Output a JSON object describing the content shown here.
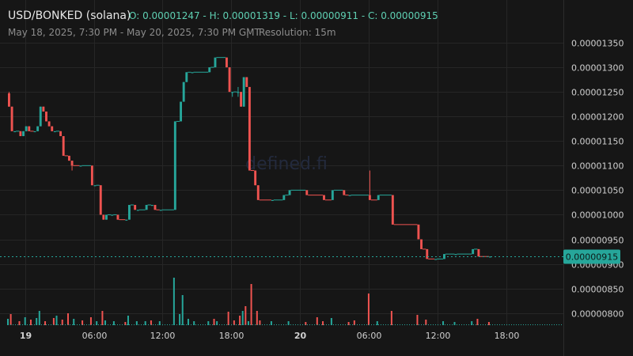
{
  "header": {
    "pair": "USD/BONKED (solana)",
    "ohlc": "O: 0.00001247 - H: 0.00001319 - L: 0.00000911 - C: 0.00000915",
    "range": "May 18, 2025, 7:30 PM - May 20, 2025, 7:30 PM GMT",
    "separator": "|",
    "resolution": "Resolution: 15m"
  },
  "watermark": "defined.fi",
  "colors": {
    "up": "#26a69a",
    "down": "#ef5350",
    "last_price": "#26a69a",
    "grid": "#262626",
    "background": "#161616"
  },
  "chart_data": {
    "type": "candlestick",
    "x_ticks": [
      {
        "label": "19",
        "hour": 4.5,
        "bold": true
      },
      {
        "label": "06:00",
        "hour": 10.5,
        "bold": false
      },
      {
        "label": "12:00",
        "hour": 16.5,
        "bold": false
      },
      {
        "label": "18:00",
        "hour": 22.5,
        "bold": false
      },
      {
        "label": "20",
        "hour": 28.5,
        "bold": true
      },
      {
        "label": "06:00",
        "hour": 34.5,
        "bold": false
      },
      {
        "label": "12:00",
        "hour": 40.5,
        "bold": false
      },
      {
        "label": "18:00",
        "hour": 46.5,
        "bold": false
      }
    ],
    "y_ticks": [
      "0.00001350",
      "0.00001300",
      "0.00001250",
      "0.00001200",
      "0.00001150",
      "0.00001100",
      "0.00001050",
      "0.00001000",
      "0.00000950",
      "0.00000900",
      "0.00000850",
      "0.00000800"
    ],
    "y_tick_values": [
      1.35e-05,
      1.3e-05,
      1.25e-05,
      1.2e-05,
      1.15e-05,
      1.1e-05,
      1.05e-05,
      1e-05,
      9.5e-06,
      9e-06,
      8.5e-06,
      8e-06
    ],
    "ylim": [
      7.85e-06,
      1.375e-05
    ],
    "x_range_hours": [
      3.0,
      51.5
    ],
    "last_price": "0.00000915",
    "last_price_value": 9.15e-06,
    "candles": [
      {
        "h": 3.0,
        "o": 1.247e-05,
        "hi": 1.25e-05,
        "lo": 1.22e-05,
        "c": 1.22e-05
      },
      {
        "h": 3.25,
        "o": 1.22e-05,
        "hi": 1.22e-05,
        "lo": 1.17e-05,
        "c": 1.17e-05
      },
      {
        "h": 3.5,
        "o": 1.17e-05,
        "hi": 1.17e-05,
        "lo": 1.17e-05,
        "c": 1.17e-05
      },
      {
        "h": 4.0,
        "o": 1.17e-05,
        "hi": 1.17e-05,
        "lo": 1.16e-05,
        "c": 1.16e-05
      },
      {
        "h": 4.25,
        "o": 1.16e-05,
        "hi": 1.17e-05,
        "lo": 1.16e-05,
        "c": 1.17e-05
      },
      {
        "h": 4.5,
        "o": 1.17e-05,
        "hi": 1.18e-05,
        "lo": 1.17e-05,
        "c": 1.18e-05
      },
      {
        "h": 4.75,
        "o": 1.18e-05,
        "hi": 1.18e-05,
        "lo": 1.17e-05,
        "c": 1.17e-05
      },
      {
        "h": 5.25,
        "o": 1.17e-05,
        "hi": 1.17e-05,
        "lo": 1.17e-05,
        "c": 1.17e-05
      },
      {
        "h": 5.5,
        "o": 1.17e-05,
        "hi": 1.18e-05,
        "lo": 1.17e-05,
        "c": 1.18e-05
      },
      {
        "h": 5.75,
        "o": 1.18e-05,
        "hi": 1.22e-05,
        "lo": 1.18e-05,
        "c": 1.22e-05
      },
      {
        "h": 6.0,
        "o": 1.22e-05,
        "hi": 1.22e-05,
        "lo": 1.21e-05,
        "c": 1.21e-05
      },
      {
        "h": 6.25,
        "o": 1.21e-05,
        "hi": 1.21e-05,
        "lo": 1.19e-05,
        "c": 1.19e-05
      },
      {
        "h": 6.5,
        "o": 1.19e-05,
        "hi": 1.19e-05,
        "lo": 1.18e-05,
        "c": 1.18e-05
      },
      {
        "h": 6.75,
        "o": 1.18e-05,
        "hi": 1.18e-05,
        "lo": 1.17e-05,
        "c": 1.17e-05
      },
      {
        "h": 7.0,
        "o": 1.17e-05,
        "hi": 1.17e-05,
        "lo": 1.17e-05,
        "c": 1.17e-05
      },
      {
        "h": 7.5,
        "o": 1.17e-05,
        "hi": 1.17e-05,
        "lo": 1.16e-05,
        "c": 1.16e-05
      },
      {
        "h": 7.75,
        "o": 1.16e-05,
        "hi": 1.16e-05,
        "lo": 1.12e-05,
        "c": 1.12e-05
      },
      {
        "h": 8.25,
        "o": 1.12e-05,
        "hi": 1.12e-05,
        "lo": 1.11e-05,
        "c": 1.11e-05
      },
      {
        "h": 8.5,
        "o": 1.11e-05,
        "hi": 1.11e-05,
        "lo": 1.09e-05,
        "c": 1.1e-05
      },
      {
        "h": 9.25,
        "o": 1.1e-05,
        "hi": 1.1e-05,
        "lo": 1.1e-05,
        "c": 1.1e-05
      },
      {
        "h": 10.25,
        "o": 1.1e-05,
        "hi": 1.1e-05,
        "lo": 1.06e-05,
        "c": 1.06e-05
      },
      {
        "h": 10.5,
        "o": 1.06e-05,
        "hi": 1.06e-05,
        "lo": 1.06e-05,
        "c": 1.06e-05
      },
      {
        "h": 11.0,
        "o": 1.06e-05,
        "hi": 1.06e-05,
        "lo": 1e-05,
        "c": 1e-05
      },
      {
        "h": 11.25,
        "o": 1e-05,
        "hi": 1e-05,
        "lo": 9.9e-06,
        "c": 9.9e-06
      },
      {
        "h": 11.5,
        "o": 9.9e-06,
        "hi": 1e-05,
        "lo": 9.9e-06,
        "c": 1e-05
      },
      {
        "h": 12.0,
        "o": 1e-05,
        "hi": 1e-05,
        "lo": 1e-05,
        "c": 1e-05
      },
      {
        "h": 12.5,
        "o": 1e-05,
        "hi": 1e-05,
        "lo": 9.9e-06,
        "c": 9.9e-06
      },
      {
        "h": 13.25,
        "o": 9.9e-06,
        "hi": 9.9e-06,
        "lo": 9.9e-06,
        "c": 9.9e-06
      },
      {
        "h": 13.5,
        "o": 9.9e-06,
        "hi": 1.02e-05,
        "lo": 9.9e-06,
        "c": 1.02e-05
      },
      {
        "h": 14.0,
        "o": 1.02e-05,
        "hi": 1.02e-05,
        "lo": 1.01e-05,
        "c": 1.01e-05
      },
      {
        "h": 14.25,
        "o": 1.01e-05,
        "hi": 1.01e-05,
        "lo": 1.01e-05,
        "c": 1.01e-05
      },
      {
        "h": 15.0,
        "o": 1.01e-05,
        "hi": 1.02e-05,
        "lo": 1.01e-05,
        "c": 1.02e-05
      },
      {
        "h": 15.5,
        "o": 1.02e-05,
        "hi": 1.02e-05,
        "lo": 1.02e-05,
        "c": 1.02e-05
      },
      {
        "h": 15.75,
        "o": 1.02e-05,
        "hi": 1.02e-05,
        "lo": 1.01e-05,
        "c": 1.01e-05
      },
      {
        "h": 16.25,
        "o": 1.01e-05,
        "hi": 1.01e-05,
        "lo": 1.01e-05,
        "c": 1.01e-05
      },
      {
        "h": 17.5,
        "o": 1.01e-05,
        "hi": 1.19e-05,
        "lo": 1.01e-05,
        "c": 1.19e-05
      },
      {
        "h": 18.0,
        "o": 1.19e-05,
        "hi": 1.23e-05,
        "lo": 1.19e-05,
        "c": 1.23e-05
      },
      {
        "h": 18.25,
        "o": 1.23e-05,
        "hi": 1.27e-05,
        "lo": 1.23e-05,
        "c": 1.27e-05
      },
      {
        "h": 18.5,
        "o": 1.27e-05,
        "hi": 1.29e-05,
        "lo": 1.27e-05,
        "c": 1.29e-05
      },
      {
        "h": 19.0,
        "o": 1.29e-05,
        "hi": 1.29e-05,
        "lo": 1.29e-05,
        "c": 1.29e-05
      },
      {
        "h": 20.5,
        "o": 1.29e-05,
        "hi": 1.3e-05,
        "lo": 1.29e-05,
        "c": 1.3e-05
      },
      {
        "h": 21.0,
        "o": 1.3e-05,
        "hi": 1.319e-05,
        "lo": 1.3e-05,
        "c": 1.32e-05
      },
      {
        "h": 22.0,
        "o": 1.32e-05,
        "hi": 1.32e-05,
        "lo": 1.3e-05,
        "c": 1.3e-05
      },
      {
        "h": 22.25,
        "o": 1.3e-05,
        "hi": 1.3e-05,
        "lo": 1.25e-05,
        "c": 1.25e-05
      },
      {
        "h": 22.5,
        "o": 1.25e-05,
        "hi": 1.25e-05,
        "lo": 1.24e-05,
        "c": 1.25e-05
      },
      {
        "h": 23.0,
        "o": 1.25e-05,
        "hi": 1.26e-05,
        "lo": 1.24e-05,
        "c": 1.25e-05
      },
      {
        "h": 23.25,
        "o": 1.25e-05,
        "hi": 1.25e-05,
        "lo": 1.22e-05,
        "c": 1.22e-05
      },
      {
        "h": 23.5,
        "o": 1.22e-05,
        "hi": 1.28e-05,
        "lo": 1.22e-05,
        "c": 1.28e-05
      },
      {
        "h": 23.75,
        "o": 1.28e-05,
        "hi": 1.28e-05,
        "lo": 1.26e-05,
        "c": 1.26e-05
      },
      {
        "h": 24.0,
        "o": 1.26e-05,
        "hi": 1.26e-05,
        "lo": 1.09e-05,
        "c": 1.09e-05
      },
      {
        "h": 24.5,
        "o": 1.09e-05,
        "hi": 1.09e-05,
        "lo": 1.06e-05,
        "c": 1.06e-05
      },
      {
        "h": 24.75,
        "o": 1.06e-05,
        "hi": 1.06e-05,
        "lo": 1.03e-05,
        "c": 1.03e-05
      },
      {
        "h": 26.0,
        "o": 1.03e-05,
        "hi": 1.03e-05,
        "lo": 1.03e-05,
        "c": 1.03e-05
      },
      {
        "h": 27.0,
        "o": 1.03e-05,
        "hi": 1.04e-05,
        "lo": 1.03e-05,
        "c": 1.04e-05
      },
      {
        "h": 27.5,
        "o": 1.04e-05,
        "hi": 1.05e-05,
        "lo": 1.04e-05,
        "c": 1.05e-05
      },
      {
        "h": 29.0,
        "o": 1.05e-05,
        "hi": 1.05e-05,
        "lo": 1.04e-05,
        "c": 1.04e-05
      },
      {
        "h": 30.5,
        "o": 1.04e-05,
        "hi": 1.04e-05,
        "lo": 1.03e-05,
        "c": 1.03e-05
      },
      {
        "h": 31.25,
        "o": 1.03e-05,
        "hi": 1.05e-05,
        "lo": 1.03e-05,
        "c": 1.05e-05
      },
      {
        "h": 32.25,
        "o": 1.05e-05,
        "hi": 1.05e-05,
        "lo": 1.04e-05,
        "c": 1.04e-05
      },
      {
        "h": 32.75,
        "o": 1.04e-05,
        "hi": 1.04e-05,
        "lo": 1.04e-05,
        "c": 1.04e-05
      },
      {
        "h": 34.5,
        "o": 1.04e-05,
        "hi": 1.09e-05,
        "lo": 1.03e-05,
        "c": 1.03e-05
      },
      {
        "h": 35.25,
        "o": 1.03e-05,
        "hi": 1.04e-05,
        "lo": 1.03e-05,
        "c": 1.04e-05
      },
      {
        "h": 36.5,
        "o": 1.04e-05,
        "hi": 1.04e-05,
        "lo": 9.8e-06,
        "c": 9.8e-06
      },
      {
        "h": 38.75,
        "o": 9.8e-06,
        "hi": 9.8e-06,
        "lo": 9.5e-06,
        "c": 9.5e-06
      },
      {
        "h": 39.0,
        "o": 9.5e-06,
        "hi": 9.5e-06,
        "lo": 9.3e-06,
        "c": 9.3e-06
      },
      {
        "h": 39.5,
        "o": 9.3e-06,
        "hi": 9.3e-06,
        "lo": 9.11e-06,
        "c": 9.1e-06
      },
      {
        "h": 40.25,
        "o": 9.1e-06,
        "hi": 9.1e-06,
        "lo": 9.1e-06,
        "c": 9.1e-06
      },
      {
        "h": 41.0,
        "o": 9.1e-06,
        "hi": 9.2e-06,
        "lo": 9.1e-06,
        "c": 9.2e-06
      },
      {
        "h": 42.0,
        "o": 9.2e-06,
        "hi": 9.2e-06,
        "lo": 9.2e-06,
        "c": 9.2e-06
      },
      {
        "h": 43.5,
        "o": 9.2e-06,
        "hi": 9.3e-06,
        "lo": 9.2e-06,
        "c": 9.3e-06
      },
      {
        "h": 44.0,
        "o": 9.3e-06,
        "hi": 9.3e-06,
        "lo": 9.2e-06,
        "c": 9.15e-06
      },
      {
        "h": 45.0,
        "o": 9.15e-06,
        "hi": 9.15e-06,
        "lo": 9.15e-06,
        "c": 9.15e-06
      }
    ],
    "volume": [
      {
        "h": 3.0,
        "v": 8,
        "dir": "up"
      },
      {
        "h": 3.25,
        "v": 14,
        "dir": "down"
      },
      {
        "h": 4.0,
        "v": 5,
        "dir": "down"
      },
      {
        "h": 4.5,
        "v": 10,
        "dir": "up"
      },
      {
        "h": 5.0,
        "v": 7,
        "dir": "down"
      },
      {
        "h": 5.5,
        "v": 9,
        "dir": "up"
      },
      {
        "h": 5.75,
        "v": 18,
        "dir": "up"
      },
      {
        "h": 6.25,
        "v": 5,
        "dir": "down"
      },
      {
        "h": 7.0,
        "v": 9,
        "dir": "down"
      },
      {
        "h": 7.25,
        "v": 12,
        "dir": "up"
      },
      {
        "h": 7.75,
        "v": 7,
        "dir": "down"
      },
      {
        "h": 8.25,
        "v": 15,
        "dir": "down"
      },
      {
        "h": 8.75,
        "v": 8,
        "dir": "up"
      },
      {
        "h": 9.5,
        "v": 6,
        "dir": "down"
      },
      {
        "h": 10.25,
        "v": 10,
        "dir": "down"
      },
      {
        "h": 10.75,
        "v": 5,
        "dir": "up"
      },
      {
        "h": 11.25,
        "v": 18,
        "dir": "down"
      },
      {
        "h": 11.5,
        "v": 6,
        "dir": "up"
      },
      {
        "h": 12.25,
        "v": 5,
        "dir": "up"
      },
      {
        "h": 13.25,
        "v": 4,
        "dir": "down"
      },
      {
        "h": 13.5,
        "v": 12,
        "dir": "up"
      },
      {
        "h": 14.25,
        "v": 5,
        "dir": "up"
      },
      {
        "h": 15.0,
        "v": 5,
        "dir": "up"
      },
      {
        "h": 15.5,
        "v": 6,
        "dir": "down"
      },
      {
        "h": 16.25,
        "v": 5,
        "dir": "up"
      },
      {
        "h": 17.5,
        "v": 60,
        "dir": "up"
      },
      {
        "h": 18.0,
        "v": 14,
        "dir": "up"
      },
      {
        "h": 18.25,
        "v": 38,
        "dir": "up"
      },
      {
        "h": 18.75,
        "v": 8,
        "dir": "up"
      },
      {
        "h": 19.25,
        "v": 5,
        "dir": "up"
      },
      {
        "h": 20.5,
        "v": 5,
        "dir": "up"
      },
      {
        "h": 21.0,
        "v": 8,
        "dir": "down"
      },
      {
        "h": 21.25,
        "v": 5,
        "dir": "up"
      },
      {
        "h": 22.25,
        "v": 17,
        "dir": "down"
      },
      {
        "h": 22.75,
        "v": 6,
        "dir": "down"
      },
      {
        "h": 23.25,
        "v": 12,
        "dir": "down"
      },
      {
        "h": 23.5,
        "v": 18,
        "dir": "up"
      },
      {
        "h": 23.75,
        "v": 24,
        "dir": "down"
      },
      {
        "h": 24.0,
        "v": 5,
        "dir": "up"
      },
      {
        "h": 24.25,
        "v": 52,
        "dir": "down"
      },
      {
        "h": 24.75,
        "v": 18,
        "dir": "down"
      },
      {
        "h": 25.0,
        "v": 6,
        "dir": "down"
      },
      {
        "h": 26.0,
        "v": 5,
        "dir": "up"
      },
      {
        "h": 27.5,
        "v": 5,
        "dir": "up"
      },
      {
        "h": 29.0,
        "v": 4,
        "dir": "down"
      },
      {
        "h": 30.0,
        "v": 10,
        "dir": "down"
      },
      {
        "h": 30.5,
        "v": 5,
        "dir": "down"
      },
      {
        "h": 31.25,
        "v": 9,
        "dir": "up"
      },
      {
        "h": 32.75,
        "v": 4,
        "dir": "down"
      },
      {
        "h": 33.25,
        "v": 6,
        "dir": "down"
      },
      {
        "h": 34.5,
        "v": 40,
        "dir": "down"
      },
      {
        "h": 35.25,
        "v": 5,
        "dir": "up"
      },
      {
        "h": 36.5,
        "v": 18,
        "dir": "down"
      },
      {
        "h": 38.75,
        "v": 13,
        "dir": "down"
      },
      {
        "h": 39.5,
        "v": 7,
        "dir": "down"
      },
      {
        "h": 41.0,
        "v": 5,
        "dir": "up"
      },
      {
        "h": 42.0,
        "v": 4,
        "dir": "up"
      },
      {
        "h": 43.5,
        "v": 5,
        "dir": "up"
      },
      {
        "h": 44.0,
        "v": 8,
        "dir": "down"
      },
      {
        "h": 45.0,
        "v": 4,
        "dir": "down"
      }
    ]
  }
}
